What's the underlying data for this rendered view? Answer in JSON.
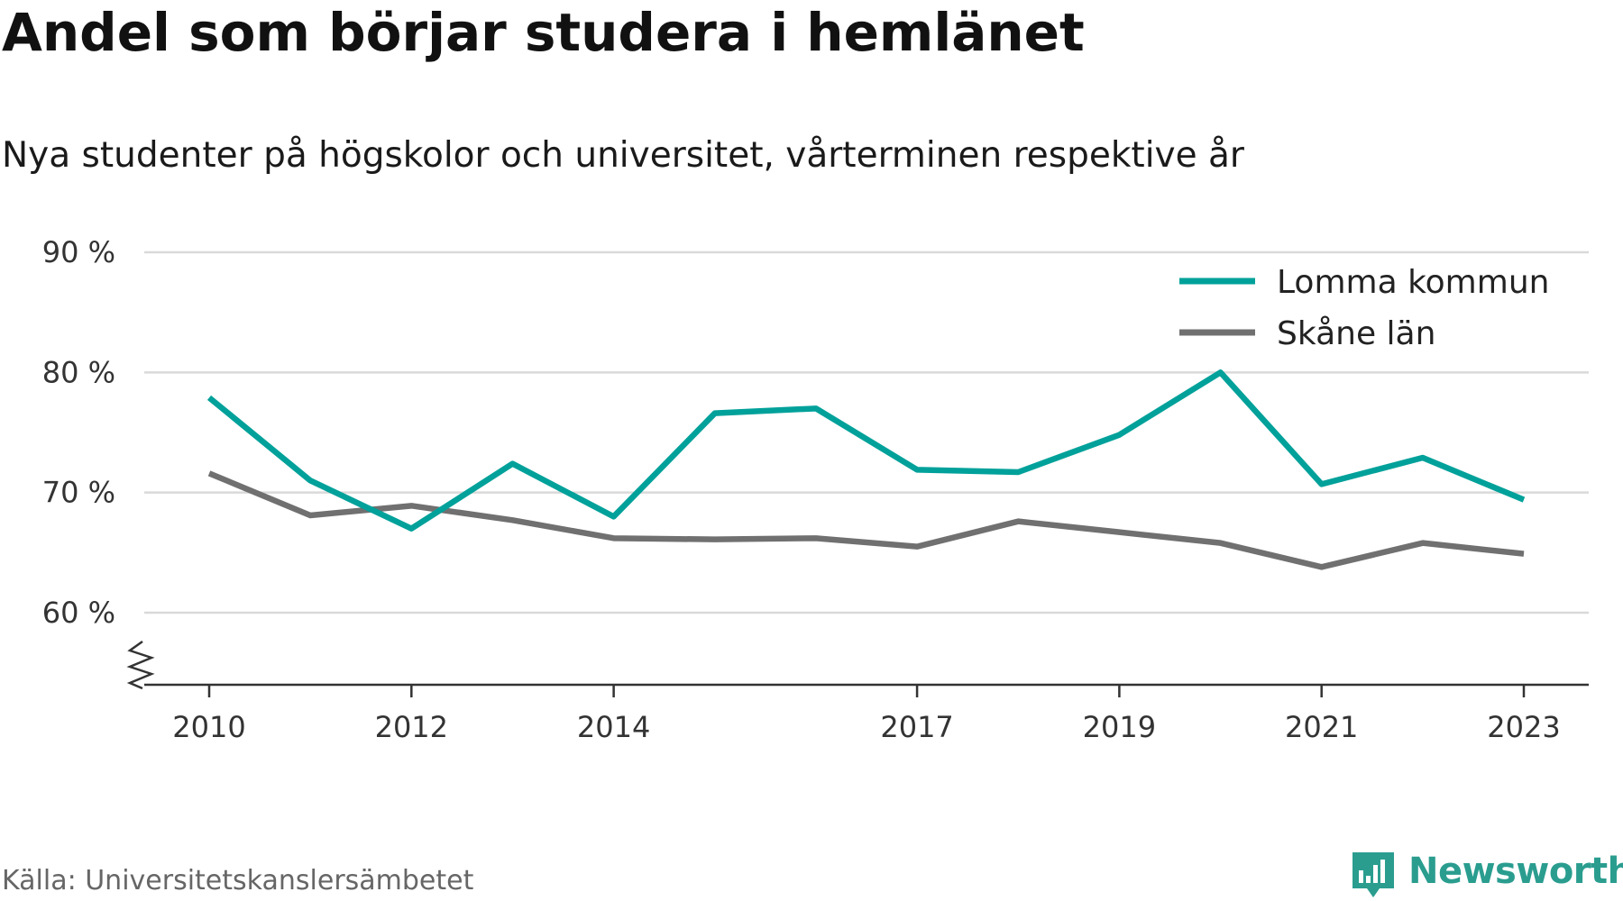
{
  "header": {
    "title": "Andel som börjar studera i hemlänet",
    "subtitle": "Nya studenter på högskolor och universitet, vårterminen respektive år"
  },
  "footer": {
    "source": "Källa: Universitetskanslersämbetet",
    "brand": "Newsworthy",
    "brand_icon": "bar-chart-bubble-icon",
    "brand_color": "#2a9d8f"
  },
  "chart_data": {
    "type": "line",
    "x": [
      2010,
      2011,
      2012,
      2013,
      2014,
      2015,
      2016,
      2017,
      2018,
      2019,
      2020,
      2021,
      2022,
      2023
    ],
    "x_tick_labels": [
      "2010",
      "2012",
      "2014",
      "2017",
      "2019",
      "2021",
      "2023"
    ],
    "y_ticks": [
      60,
      70,
      80,
      90
    ],
    "y_tick_labels": [
      "60 %",
      "70 %",
      "80 %",
      "90 %"
    ],
    "ylim": [
      54,
      90
    ],
    "y_axis_break": true,
    "grid": true,
    "legend_position": "top-right",
    "series": [
      {
        "name": "Lomma kommun",
        "color": "#00a19a",
        "values": [
          77.9,
          71.0,
          67.0,
          72.4,
          68.0,
          76.6,
          77.0,
          71.9,
          71.7,
          74.8,
          80.0,
          70.7,
          72.9,
          69.4
        ]
      },
      {
        "name": "Skåne län",
        "color": "#707070",
        "values": [
          71.6,
          68.1,
          68.9,
          67.7,
          66.2,
          66.1,
          66.2,
          65.5,
          67.6,
          66.7,
          65.8,
          63.8,
          65.8,
          64.9
        ]
      }
    ]
  }
}
